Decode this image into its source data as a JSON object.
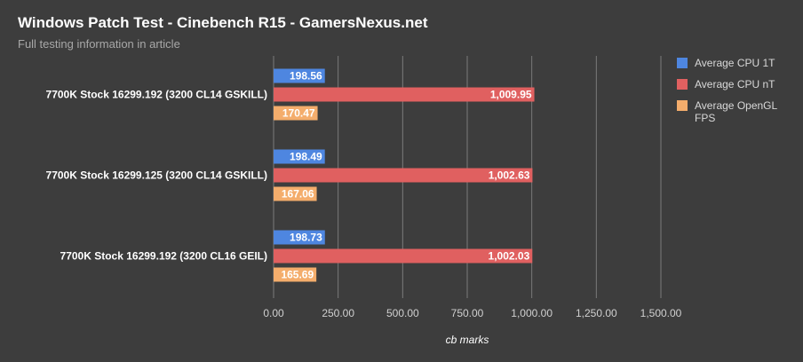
{
  "header": {
    "title": "Windows Patch Test - Cinebench R15 - GamersNexus.net",
    "subtitle": "Full testing information in article"
  },
  "colors": {
    "background": "#3d3d3d",
    "grid": "#7a7a7a",
    "series": [
      "#4e86e0",
      "#e06060",
      "#f4ad6c"
    ]
  },
  "chart_data": {
    "type": "bar",
    "orientation": "horizontal",
    "title": "Windows Patch Test - Cinebench R15 - GamersNexus.net",
    "subtitle": "Full testing information in article",
    "categories": [
      "7700K Stock 16299.192 (3200 CL14 GSKILL)",
      "7700K Stock 16299.125 (3200 CL14 GSKILL)",
      "7700K Stock 16299.192 (3200 CL16 GEIL)"
    ],
    "series": [
      {
        "name": "Average CPU 1T",
        "values": [
          198.56,
          198.49,
          198.73
        ],
        "labels": [
          "198.56",
          "198.49",
          "198.73"
        ]
      },
      {
        "name": "Average CPU nT",
        "values": [
          1009.95,
          1002.63,
          1002.03
        ],
        "labels": [
          "1,009.95",
          "1,002.63",
          "1,002.03"
        ]
      },
      {
        "name": "Average OpenGL FPS",
        "values": [
          170.47,
          167.06,
          165.69
        ],
        "labels": [
          "170.47",
          "167.06",
          "165.69"
        ]
      }
    ],
    "xlabel": "cb marks",
    "ylabel": "",
    "xlim": [
      0,
      1500
    ],
    "xticks": [
      0,
      250,
      500,
      750,
      1000,
      1250,
      1500
    ],
    "xtick_labels": [
      "0.00",
      "250.00",
      "500.00",
      "750.00",
      "1,000.00",
      "1,250.00",
      "1,500.00"
    ],
    "grid": true,
    "legend_position": "right"
  }
}
